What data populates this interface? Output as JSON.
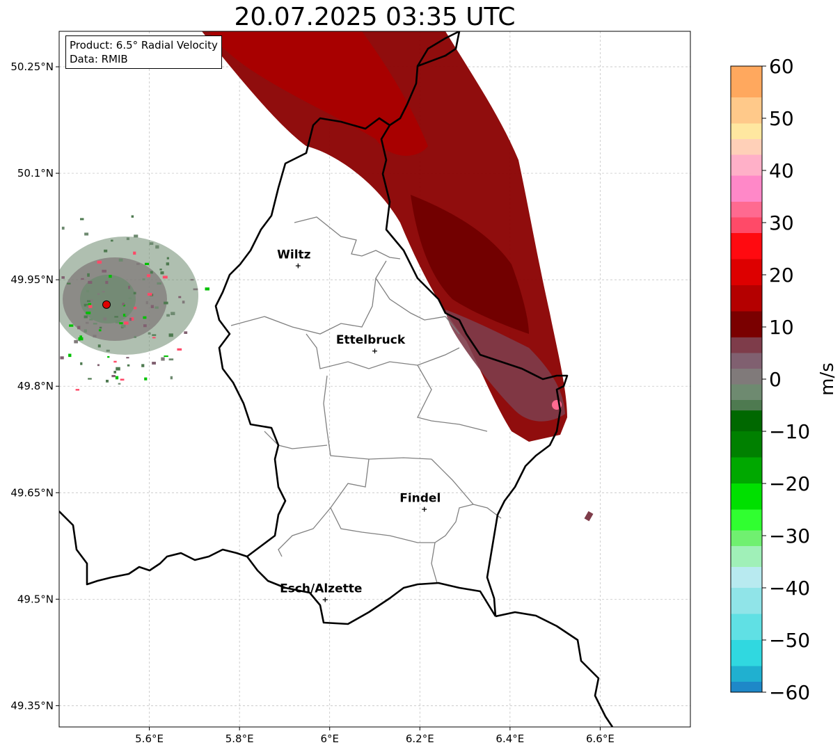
{
  "title": "20.07.2025 03:35 UTC",
  "info_box": {
    "product_line": "Product: 6.5° Radial Velocity",
    "data_line": "Data: RMIB"
  },
  "map": {
    "lon_range": [
      5.4,
      6.8
    ],
    "lat_range": [
      49.32,
      50.3
    ],
    "x_ticks": [
      {
        "value": 5.6,
        "label": "5.6°E"
      },
      {
        "value": 5.8,
        "label": "5.8°E"
      },
      {
        "value": 6.0,
        "label": "6°E"
      },
      {
        "value": 6.2,
        "label": "6.2°E"
      },
      {
        "value": 6.4,
        "label": "6.4°E"
      },
      {
        "value": 6.6,
        "label": "6.6°E"
      }
    ],
    "y_ticks": [
      {
        "value": 50.25,
        "label": "50.25°N"
      },
      {
        "value": 50.1,
        "label": "50.1°N"
      },
      {
        "value": 49.95,
        "label": "49.95°N"
      },
      {
        "value": 49.8,
        "label": "49.8°N"
      },
      {
        "value": 49.65,
        "label": "49.65°N"
      },
      {
        "value": 49.5,
        "label": "49.5°N"
      },
      {
        "value": 49.35,
        "label": "49.35°N"
      }
    ],
    "grid": true,
    "cities": [
      {
        "name": "Wiltz",
        "lon": 5.93,
        "lat": 49.97
      },
      {
        "name": "Ettelbruck",
        "lon": 6.1,
        "lat": 49.85
      },
      {
        "name": "Findel",
        "lon": 6.21,
        "lat": 49.627
      },
      {
        "name": "Esch/Alzette",
        "lon": 5.99,
        "lat": 49.5
      }
    ],
    "radar_site": {
      "lon": 5.505,
      "lat": 49.915,
      "color": "#e00000"
    }
  },
  "colorbar": {
    "unit": "m/s",
    "vmin": -60,
    "vmax": 60,
    "ticks": [
      {
        "value": 60,
        "label": "60"
      },
      {
        "value": 50,
        "label": "50"
      },
      {
        "value": 40,
        "label": "40"
      },
      {
        "value": 30,
        "label": "30"
      },
      {
        "value": 20,
        "label": "20"
      },
      {
        "value": 10,
        "label": "10"
      },
      {
        "value": 0,
        "label": "0"
      },
      {
        "value": -10,
        "label": "−10"
      },
      {
        "value": -20,
        "label": "−20"
      },
      {
        "value": -30,
        "label": "−30"
      },
      {
        "value": -40,
        "label": "−40"
      },
      {
        "value": -50,
        "label": "−50"
      },
      {
        "value": -60,
        "label": "−60"
      }
    ],
    "bands": [
      {
        "from": 54,
        "to": 60,
        "color": "#ffa85e"
      },
      {
        "from": 49,
        "to": 54,
        "color": "#ffc98a"
      },
      {
        "from": 46,
        "to": 49,
        "color": "#ffe7a0"
      },
      {
        "from": 43,
        "to": 46,
        "color": "#ffd0b8"
      },
      {
        "from": 39,
        "to": 43,
        "color": "#ffb0c8"
      },
      {
        "from": 34,
        "to": 39,
        "color": "#ff88c8"
      },
      {
        "from": 31,
        "to": 34,
        "color": "#ff6a90"
      },
      {
        "from": 28,
        "to": 31,
        "color": "#ff4a68"
      },
      {
        "from": 23,
        "to": 28,
        "color": "#ff0a10"
      },
      {
        "from": 18,
        "to": 23,
        "color": "#dd0000"
      },
      {
        "from": 13,
        "to": 18,
        "color": "#b40000"
      },
      {
        "from": 8,
        "to": 13,
        "color": "#7a0000"
      },
      {
        "from": 5,
        "to": 8,
        "color": "#7e3c4a"
      },
      {
        "from": 2,
        "to": 5,
        "color": "#806070"
      },
      {
        "from": -1,
        "to": 2,
        "color": "#807a7a"
      },
      {
        "from": -4,
        "to": -1,
        "color": "#6e8a70"
      },
      {
        "from": -6,
        "to": -4,
        "color": "#4e7a50"
      },
      {
        "from": -10,
        "to": -6,
        "color": "#006800"
      },
      {
        "from": -15,
        "to": -10,
        "color": "#008000"
      },
      {
        "from": -20,
        "to": -15,
        "color": "#00a800"
      },
      {
        "from": -25,
        "to": -20,
        "color": "#00e000"
      },
      {
        "from": -29,
        "to": -25,
        "color": "#30ff30"
      },
      {
        "from": -32,
        "to": -29,
        "color": "#70f070"
      },
      {
        "from": -36,
        "to": -32,
        "color": "#a0f0b8"
      },
      {
        "from": -40,
        "to": -36,
        "color": "#b8eaf0"
      },
      {
        "from": -45,
        "to": -40,
        "color": "#90e4e8"
      },
      {
        "from": -50,
        "to": -45,
        "color": "#60e0e4"
      },
      {
        "from": -55,
        "to": -50,
        "color": "#30d8e0"
      },
      {
        "from": -58,
        "to": -55,
        "color": "#20b0d0"
      },
      {
        "from": -60,
        "to": -58,
        "color": "#1e88c8"
      }
    ]
  }
}
